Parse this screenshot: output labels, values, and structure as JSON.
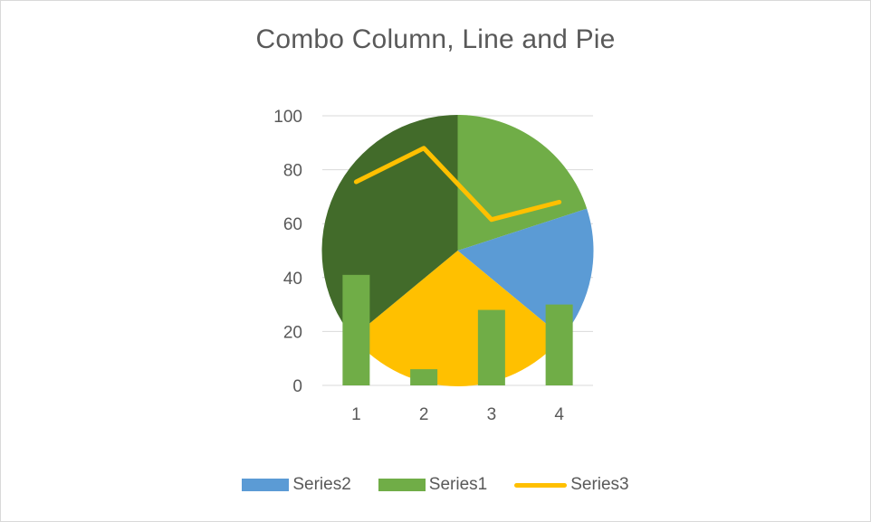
{
  "chart_data": {
    "type": "combo",
    "title": "Combo Column, Line and Pie",
    "xlabel": "",
    "ylabel": "",
    "categories": [
      "1",
      "2",
      "3",
      "4"
    ],
    "ylim": [
      0,
      100
    ],
    "yticks": [
      0,
      20,
      40,
      60,
      80,
      100
    ],
    "grid": true,
    "legend_position": "bottom",
    "series": [
      {
        "name": "Series1",
        "type": "column",
        "color": "#70ad47",
        "values": [
          41,
          6,
          28,
          30
        ]
      },
      {
        "name": "Series3",
        "type": "line",
        "color": "#ffc000",
        "values": [
          75.5,
          88,
          61.5,
          68
        ]
      },
      {
        "name": "Series2",
        "type": "pie",
        "values": [
          20,
          16,
          28,
          36
        ],
        "slice_colors": [
          "#70ad47",
          "#5b9bd5",
          "#ffc000",
          "#426b2a"
        ]
      }
    ],
    "legend": [
      {
        "name": "Series2",
        "kind": "swatch",
        "color": "#5b9bd5"
      },
      {
        "name": "Series1",
        "kind": "swatch",
        "color": "#70ad47"
      },
      {
        "name": "Series3",
        "kind": "line",
        "color": "#ffc000"
      }
    ],
    "colors": {
      "gridline": "#d9d9d9",
      "text": "#595959"
    }
  }
}
